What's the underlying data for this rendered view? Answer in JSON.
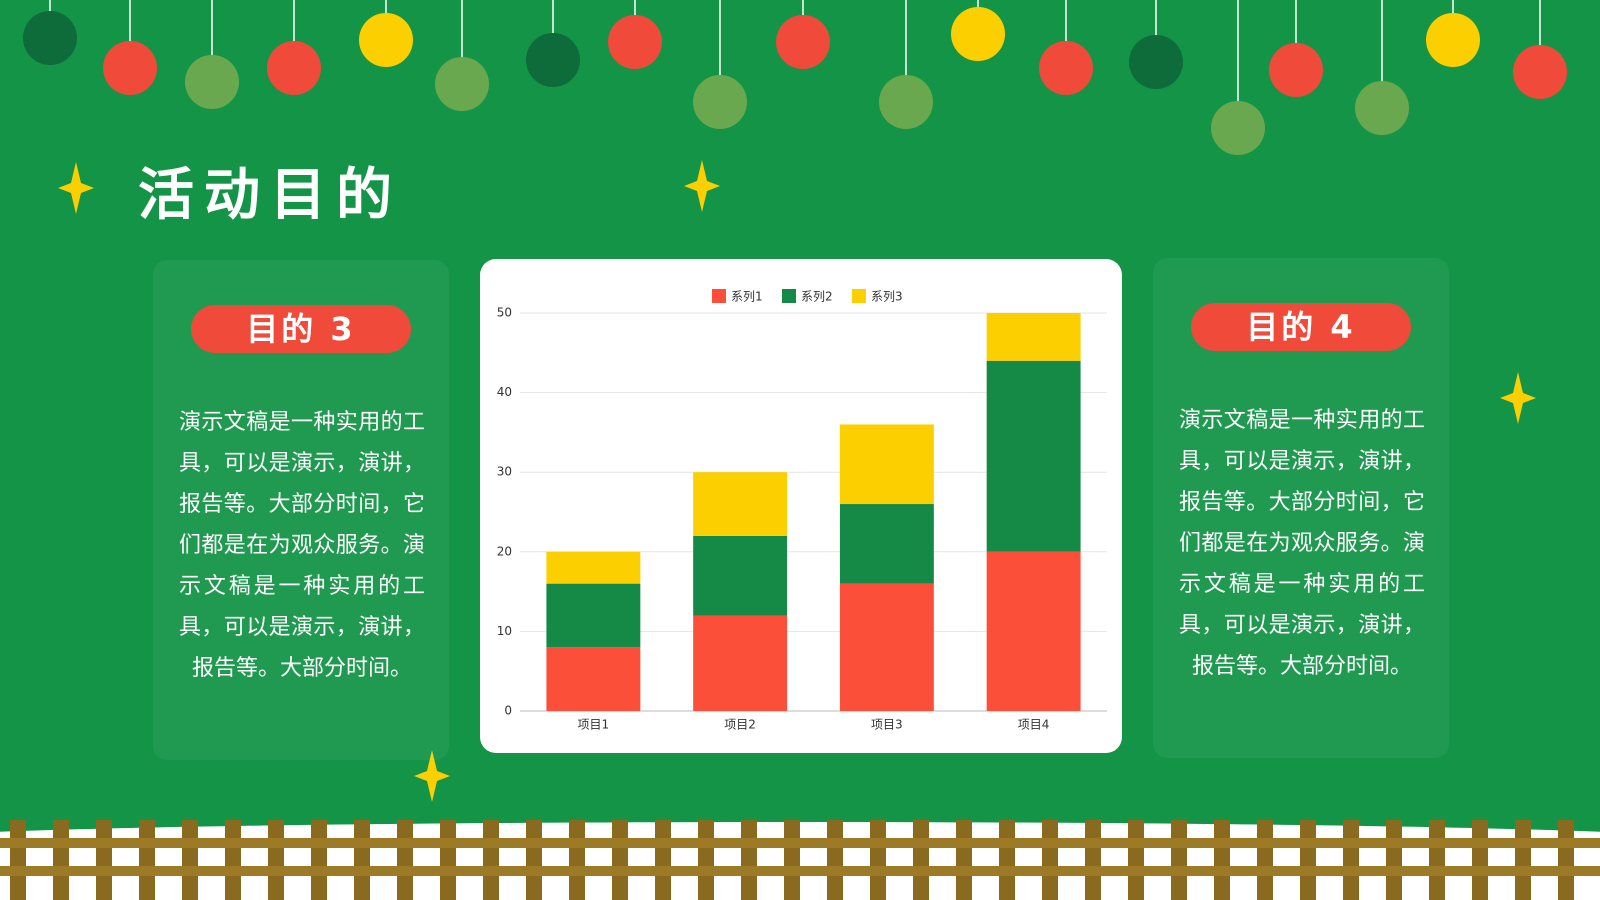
{
  "title": "活动目的",
  "cards": [
    {
      "label": "目的 3",
      "text": "演示文稿是一种实用的工具，可以是演示，演讲，报告等。大部分时间，它们都是在为观众服务。演示文稿是一种实用的工具，可以是演示，演讲，报告等。大部分时间。"
    },
    {
      "label": "目的 4",
      "text": "演示文稿是一种实用的工具，可以是演示，演讲，报告等。大部分时间，它们都是在为观众服务。演示文稿是一种实用的工具，可以是演示，演讲，报告等。大部分时间。"
    }
  ],
  "chart_data": {
    "type": "stacked_bar",
    "categories": [
      "项目1",
      "项目2",
      "项目3",
      "项目4"
    ],
    "series": [
      {
        "name": "系列1",
        "color": "#fc4f3a",
        "values": [
          8,
          12,
          16,
          20
        ]
      },
      {
        "name": "系列2",
        "color": "#158a46",
        "values": [
          8,
          10,
          10,
          24
        ]
      },
      {
        "name": "系列3",
        "color": "#fccf00",
        "values": [
          4,
          8,
          10,
          6
        ]
      }
    ],
    "ylim": [
      0,
      50
    ],
    "yticks": [
      0,
      10,
      20,
      30,
      40,
      50
    ],
    "grid": true,
    "legend": "top"
  }
}
